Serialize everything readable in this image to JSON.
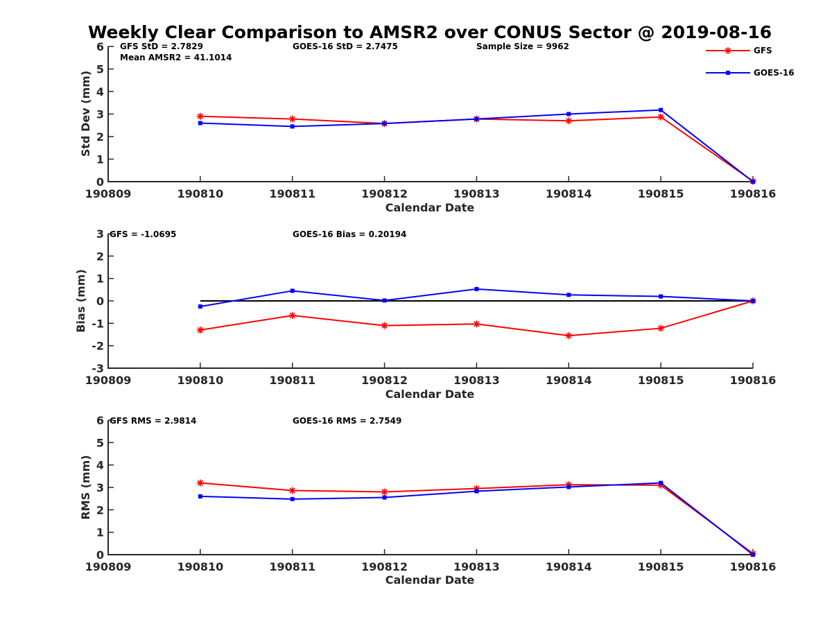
{
  "title": "Weekly Clear Comparison to AMSR2 over CONUS Sector @ 2019-08-16",
  "legend": [
    {
      "name": "GFS",
      "color": "#ff0000",
      "marker": "asterisk"
    },
    {
      "name": "GOES-16",
      "color": "#0000ff",
      "marker": "square"
    }
  ],
  "chart_data": [
    {
      "type": "line",
      "x": [
        "190809",
        "190810",
        "190811",
        "190812",
        "190813",
        "190814",
        "190815",
        "190816"
      ],
      "xlabel": "Calendar Date",
      "ylabel": "Std Dev (mm)",
      "ylim": [
        0,
        6
      ],
      "yticks": [
        0,
        1,
        2,
        3,
        4,
        5,
        6
      ],
      "annotations": [
        "GFS StD = 2.7829",
        "GOES-16 StD = 2.7475",
        "Sample Size = 9962",
        "Mean AMSR2 = 41.1014"
      ],
      "series": [
        {
          "name": "GFS",
          "color": "#ff0000",
          "marker": "asterisk",
          "values": [
            null,
            2.9,
            2.78,
            2.58,
            2.78,
            2.7,
            2.87,
            0.02
          ]
        },
        {
          "name": "GOES-16",
          "color": "#0000ff",
          "marker": "square",
          "values": [
            null,
            2.6,
            2.45,
            2.58,
            2.78,
            3.0,
            3.18,
            0.0
          ]
        }
      ]
    },
    {
      "type": "line",
      "x": [
        "190809",
        "190810",
        "190811",
        "190812",
        "190813",
        "190814",
        "190815",
        "190816"
      ],
      "xlabel": "Calendar Date",
      "ylabel": "Bias (mm)",
      "ylim": [
        -3,
        3
      ],
      "yticks": [
        -3,
        -2,
        -1,
        0,
        1,
        2,
        3
      ],
      "annotations": [
        "GFS = -1.0695",
        "GOES-16 Bias  = 0.20194"
      ],
      "reference_line": {
        "from": "190810",
        "to": "190816",
        "value": 0,
        "color": "#000000"
      },
      "series": [
        {
          "name": "GFS",
          "color": "#ff0000",
          "marker": "asterisk",
          "values": [
            null,
            -1.3,
            -0.65,
            -1.1,
            -1.03,
            -1.55,
            -1.22,
            0.0
          ]
        },
        {
          "name": "GOES-16",
          "color": "#0000ff",
          "marker": "square",
          "values": [
            null,
            -0.25,
            0.45,
            0.02,
            0.53,
            0.27,
            0.2,
            0.0
          ]
        }
      ]
    },
    {
      "type": "line",
      "x": [
        "190809",
        "190810",
        "190811",
        "190812",
        "190813",
        "190814",
        "190815",
        "190816"
      ],
      "xlabel": "Calendar Date",
      "ylabel": "RMS (mm)",
      "ylim": [
        0,
        6
      ],
      "yticks": [
        0,
        1,
        2,
        3,
        4,
        5,
        6
      ],
      "annotations": [
        "GFS RMS = 2.9814",
        "GOES-16 RMS = 2.7549"
      ],
      "series": [
        {
          "name": "GFS",
          "color": "#ff0000",
          "marker": "asterisk",
          "values": [
            null,
            3.2,
            2.86,
            2.8,
            2.95,
            3.12,
            3.1,
            0.05
          ]
        },
        {
          "name": "GOES-16",
          "color": "#0000ff",
          "marker": "square",
          "values": [
            null,
            2.6,
            2.48,
            2.55,
            2.83,
            3.02,
            3.2,
            0.0
          ]
        }
      ]
    }
  ]
}
